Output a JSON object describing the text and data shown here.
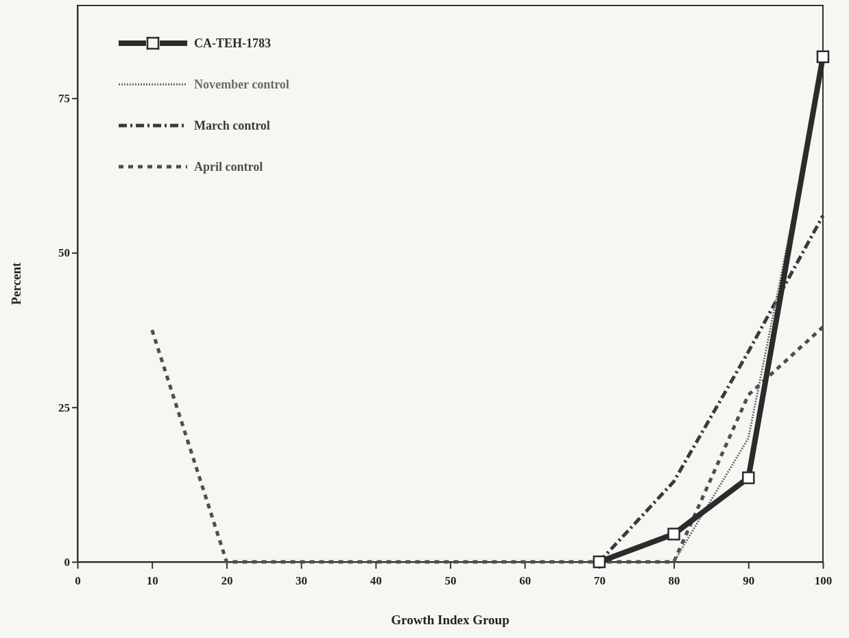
{
  "chart_data": {
    "type": "line",
    "xlabel": "Growth Index Group",
    "ylabel": "Percent",
    "xlim": [
      0,
      100
    ],
    "xticks": [
      0,
      10,
      20,
      30,
      40,
      50,
      60,
      70,
      80,
      90,
      100
    ],
    "ylim": [
      0,
      90
    ],
    "yticks": [
      0,
      25,
      50,
      75
    ],
    "grid": false,
    "legend": "top left",
    "series": [
      {
        "name": "CA-TEH-1783",
        "color": "#2b2b2b",
        "x": [
          70,
          80,
          90,
          100
        ],
        "values": [
          0,
          4.5,
          13.6,
          81.7
        ],
        "marker": "square",
        "line_style": "solid"
      },
      {
        "name": "November control",
        "color": "#6a6a6a",
        "x": [
          80,
          90,
          100
        ],
        "values": [
          0,
          20,
          80
        ],
        "marker": "none",
        "line_style": "dotted"
      },
      {
        "name": "March control",
        "color": "#3a3a3a",
        "x": [
          70,
          80,
          90,
          100
        ],
        "values": [
          0,
          13,
          34,
          56
        ],
        "marker": "none",
        "line_style": "dashdot"
      },
      {
        "name": "April control",
        "color": "#4e4e4e",
        "x": [
          10,
          20,
          30,
          40,
          50,
          60,
          70,
          80,
          90,
          100
        ],
        "values": [
          37.5,
          0,
          0,
          0,
          0,
          0,
          0,
          0,
          27,
          38
        ],
        "marker": "none",
        "line_style": "dashed"
      }
    ]
  }
}
